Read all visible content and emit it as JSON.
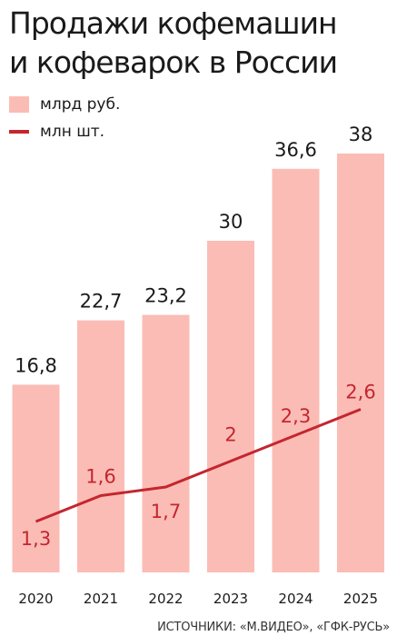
{
  "title_line1": "Продажи кофемашин",
  "title_line2": "и кофеварок в России",
  "source": "ИСТОЧНИКИ: «М.ВИДЕО», «ГФК-РУСЬ»",
  "chart_data": {
    "type": "bar",
    "categories": [
      "2020",
      "2021",
      "2022",
      "2023",
      "2024",
      "2025"
    ],
    "series": [
      {
        "name": "млрд руб.",
        "type": "bar",
        "values": [
          16.8,
          22.7,
          23.2,
          30,
          36.6,
          38
        ],
        "labels": [
          "16,8",
          "22,7",
          "23,2",
          "30",
          "36,6",
          "38"
        ],
        "color": "#fbbcb6"
      },
      {
        "name": "млн шт.",
        "type": "line",
        "values": [
          1.3,
          1.6,
          1.7,
          2,
          2.3,
          2.6
        ],
        "labels": [
          "1,3",
          "1,6",
          "1,7",
          "2",
          "2,3",
          "2,6"
        ],
        "color": "#c4262f"
      }
    ],
    "legend_position": "top-left",
    "grid": false
  }
}
